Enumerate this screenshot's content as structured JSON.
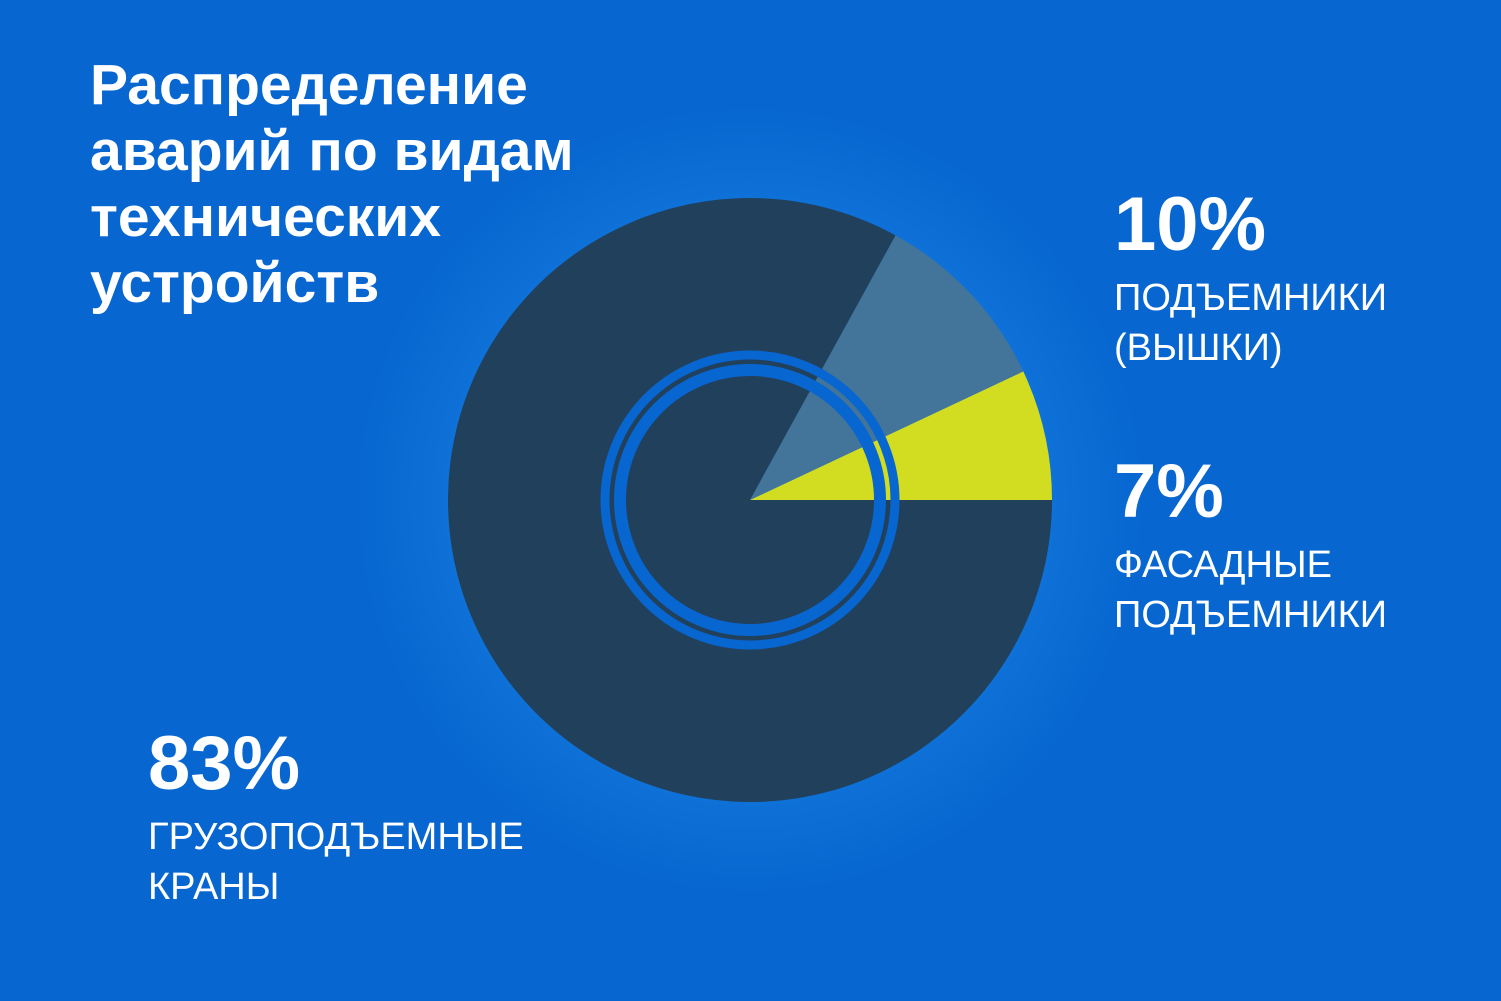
{
  "title": "Распределение\nаварий по видам\nтехнических\nустройств",
  "colors": {
    "background": "#0766d0",
    "cranes": "#21405c",
    "lifts": "#437499",
    "facade": "#d2dd22",
    "rings": "#0766d0"
  },
  "chart_data": {
    "type": "pie",
    "title": "Распределение аварий по видам технических устройств",
    "slices": [
      {
        "value": 7,
        "label_pct": "7%",
        "caption": "ФАСАДНЫЕ\nПОДЪЕМНИКИ",
        "color": "#d2dd22"
      },
      {
        "value": 10,
        "label_pct": "10%",
        "caption": "ПОДЪЕМНИКИ\n(ВЫШКИ)",
        "color": "#437499"
      },
      {
        "value": 83,
        "label_pct": "83%",
        "caption": "ГРУЗОПОДЪЕМНЫЕ\nКРАНЫ",
        "color": "#21405c"
      }
    ]
  }
}
